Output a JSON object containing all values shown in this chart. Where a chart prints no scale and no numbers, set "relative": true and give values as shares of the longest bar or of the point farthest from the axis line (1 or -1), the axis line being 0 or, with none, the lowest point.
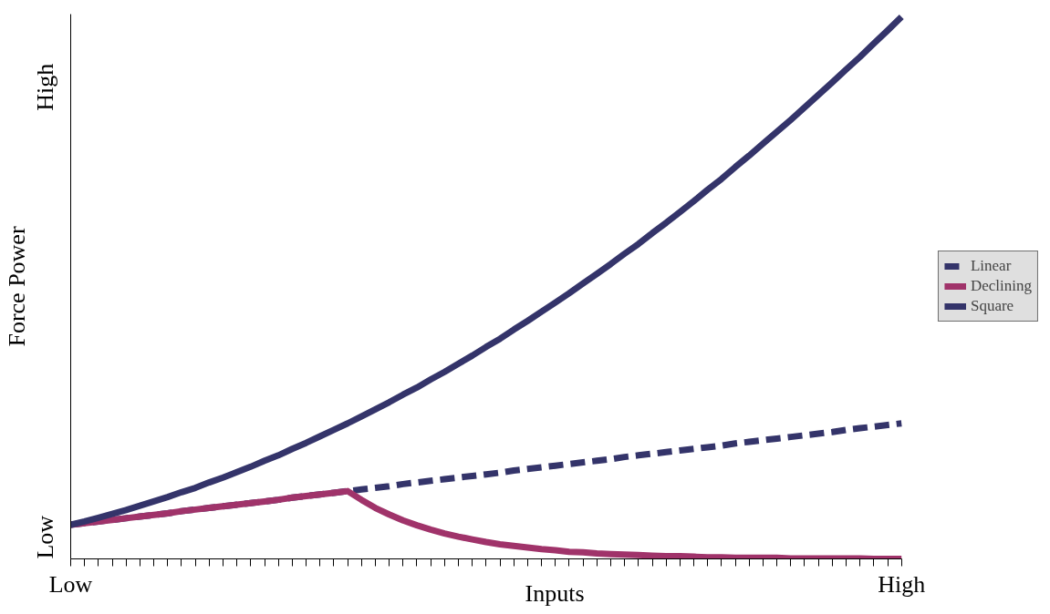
{
  "chart_data": {
    "type": "line",
    "relative": true,
    "xlabel": "Inputs",
    "ylabel": "Force Power",
    "categories": [
      "Low",
      null,
      null,
      null,
      null,
      null,
      null,
      null,
      null,
      null,
      null,
      null,
      null,
      null,
      null,
      null,
      null,
      null,
      null,
      null,
      null,
      null,
      null,
      null,
      null,
      null,
      null,
      null,
      null,
      null,
      null,
      null,
      null,
      null,
      null,
      null,
      null,
      null,
      null,
      null,
      null,
      null,
      null,
      null,
      null,
      null,
      null,
      null,
      null,
      null,
      null,
      null,
      null,
      null,
      null,
      null,
      null,
      null,
      null,
      null,
      "High"
    ],
    "annotations": [
      "Low",
      "High"
    ],
    "grid": false,
    "legend": "right",
    "marker": "none",
    "series": [
      {
        "name": "Linear",
        "color": "#34346a",
        "line_style": "dashed",
        "values": [
          0.063,
          0.066,
          0.069,
          0.072,
          0.075,
          0.078,
          0.081,
          0.084,
          0.088,
          0.091,
          0.094,
          0.097,
          0.1,
          0.103,
          0.106,
          0.109,
          0.113,
          0.116,
          0.119,
          0.122,
          0.125,
          0.128,
          0.131,
          0.134,
          0.138,
          0.141,
          0.144,
          0.147,
          0.15,
          0.153,
          0.156,
          0.159,
          0.163,
          0.166,
          0.169,
          0.172,
          0.175,
          0.178,
          0.181,
          0.184,
          0.188,
          0.191,
          0.194,
          0.197,
          0.2,
          0.203,
          0.206,
          0.209,
          0.213,
          0.216,
          0.219,
          0.222,
          0.225,
          0.228,
          0.231,
          0.234,
          0.238,
          0.241,
          0.244,
          0.247,
          0.25
        ]
      },
      {
        "name": "Declining",
        "color": "#a0336a",
        "line_style": "solid",
        "values": [
          0.063,
          0.066,
          0.069,
          0.072,
          0.075,
          0.078,
          0.081,
          0.084,
          0.088,
          0.091,
          0.094,
          0.097,
          0.1,
          0.103,
          0.106,
          0.109,
          0.113,
          0.116,
          0.119,
          0.122,
          0.125,
          0.109,
          0.094,
          0.082,
          0.071,
          0.062,
          0.054,
          0.047,
          0.041,
          0.036,
          0.031,
          0.027,
          0.024,
          0.021,
          0.018,
          0.016,
          0.013,
          0.012,
          0.01,
          0.009,
          0.008,
          0.007,
          0.006,
          0.005,
          0.005,
          0.004,
          0.003,
          0.003,
          0.002,
          0.002,
          0.002,
          0.002,
          0.001,
          0.001,
          0.001,
          0.001,
          0.001,
          0.001,
          0,
          0,
          0
        ]
      },
      {
        "name": "Square",
        "color": "#34346a",
        "line_style": "solid",
        "values": [
          0.063,
          0.069,
          0.076,
          0.083,
          0.09,
          0.098,
          0.106,
          0.114,
          0.123,
          0.131,
          0.141,
          0.15,
          0.16,
          0.17,
          0.181,
          0.191,
          0.203,
          0.214,
          0.226,
          0.238,
          0.25,
          0.263,
          0.276,
          0.289,
          0.303,
          0.316,
          0.331,
          0.345,
          0.36,
          0.375,
          0.391,
          0.406,
          0.423,
          0.439,
          0.456,
          0.473,
          0.49,
          0.508,
          0.526,
          0.544,
          0.563,
          0.581,
          0.601,
          0.62,
          0.64,
          0.66,
          0.681,
          0.701,
          0.723,
          0.744,
          0.766,
          0.788,
          0.81,
          0.833,
          0.856,
          0.879,
          0.903,
          0.926,
          0.951,
          0.975,
          1
        ]
      }
    ]
  }
}
